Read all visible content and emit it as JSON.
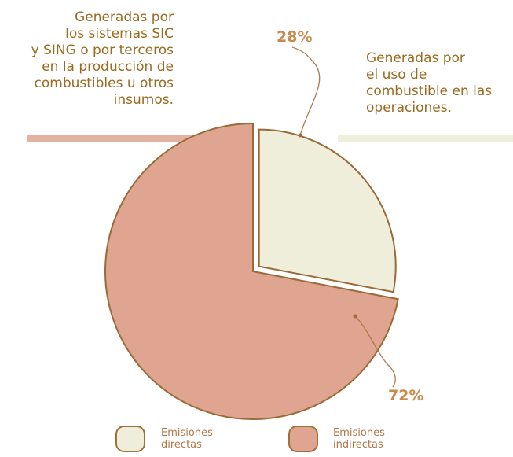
{
  "chart_data": {
    "type": "pie",
    "categories": [
      "Emisiones directas",
      "Emisiones indirectas"
    ],
    "values": [
      28,
      72
    ],
    "value_labels": [
      "28%",
      "72%"
    ],
    "colors": [
      "#efeedb",
      "#e0a591"
    ],
    "annotations": [
      "Generadas por\nlos sistemas SIC\ny SING o por terceros\nen la producción de\ncombustibles u otros\ninsumos.",
      "Generadas por\nel uso de\ncombustible en las\noperaciones."
    ]
  }
}
